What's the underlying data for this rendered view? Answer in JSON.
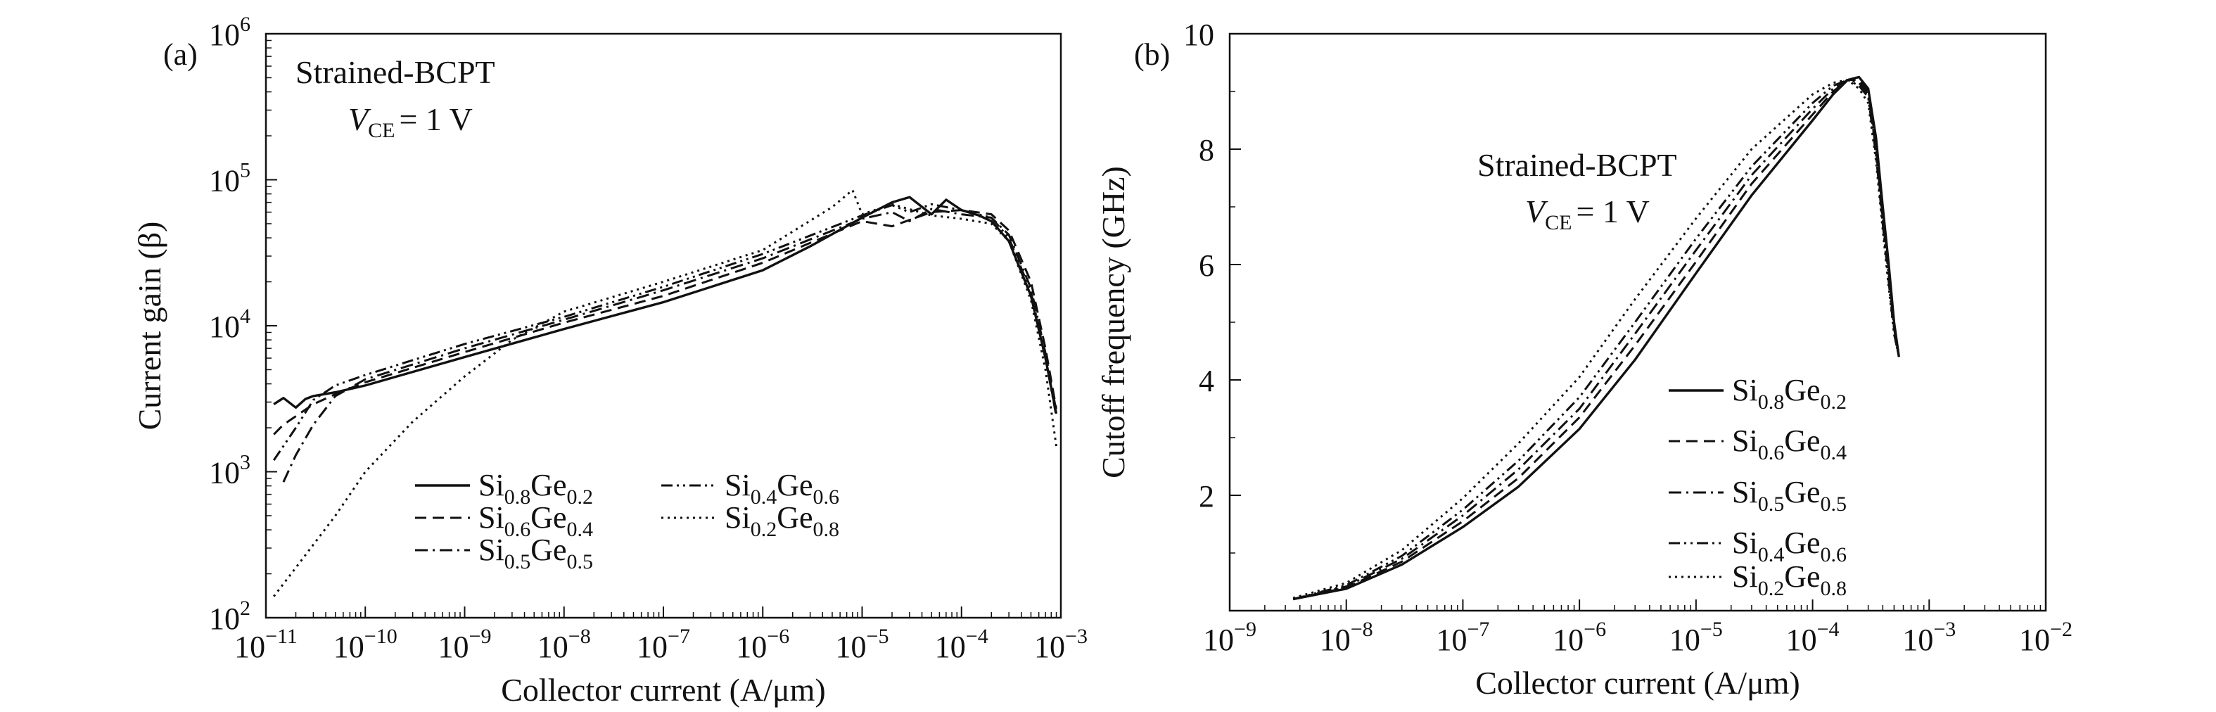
{
  "chart_data": [
    {
      "panel": "(a)",
      "type": "line",
      "annotation": {
        "line1": "Strained-BCPT",
        "vce_symbol": "V",
        "vce_sub": "CE",
        "vce_value": "= 1 V"
      },
      "xlabel": "Collector current (A/μm)",
      "ylabel": "Current gain (β)",
      "xscale": "log",
      "yscale": "log",
      "xlim": [
        1e-11,
        0.001
      ],
      "ylim": [
        100,
        1000000
      ],
      "xticks": [
        {
          "base": "10",
          "exp": "−11"
        },
        {
          "base": "10",
          "exp": "−10"
        },
        {
          "base": "10",
          "exp": "−9"
        },
        {
          "base": "10",
          "exp": "−8"
        },
        {
          "base": "10",
          "exp": "−7"
        },
        {
          "base": "10",
          "exp": "−6"
        },
        {
          "base": "10",
          "exp": "−5"
        },
        {
          "base": "10",
          "exp": "−4"
        },
        {
          "base": "10",
          "exp": "−3"
        }
      ],
      "yticks": [
        {
          "base": "10",
          "exp": "2"
        },
        {
          "base": "10",
          "exp": "3"
        },
        {
          "base": "10",
          "exp": "4"
        },
        {
          "base": "10",
          "exp": "5"
        },
        {
          "base": "10",
          "exp": "6"
        }
      ],
      "legend": "lower-left, two columns",
      "series": [
        {
          "name": {
            "a": "Si",
            "as": "0.8",
            "b": "Ge",
            "bs": "0.2"
          },
          "dash": "solid",
          "x": [
            1.2e-11,
            1.5e-11,
            2e-11,
            2.5e-11,
            3e-11,
            5e-11,
            1e-10,
            1e-09,
            1e-08,
            1e-07,
            1e-06,
            3e-06,
            1e-05,
            2e-05,
            3e-05,
            5e-05,
            7e-05,
            0.0001,
            0.00015,
            0.0002,
            0.0003,
            0.0005,
            0.0007,
            0.0009
          ],
          "y": [
            2900,
            3200,
            2750,
            3150,
            3300,
            3500,
            3900,
            6100,
            9500,
            14500,
            24000,
            35000,
            55000,
            70000,
            76000,
            58000,
            73000,
            62000,
            57000,
            52000,
            38000,
            16000,
            6000,
            2500
          ]
        },
        {
          "name": {
            "a": "Si",
            "as": "0.6",
            "b": "Ge",
            "bs": "0.4"
          },
          "dash": "dashed",
          "x": [
            1.2e-11,
            1.5e-11,
            2e-11,
            3e-11,
            5e-11,
            1e-10,
            1e-09,
            1e-08,
            1e-07,
            1e-06,
            1e-05,
            2e-05,
            3e-05,
            5e-05,
            0.0001,
            0.0002,
            0.0003,
            0.0005,
            0.0007,
            0.0009
          ],
          "y": [
            1800,
            2100,
            2400,
            2900,
            3400,
            4100,
            6600,
            10500,
            16000,
            27000,
            52000,
            48000,
            53000,
            60000,
            62000,
            58000,
            45000,
            20000,
            7000,
            2700
          ]
        },
        {
          "name": {
            "a": "Si",
            "as": "0.5",
            "b": "Ge",
            "bs": "0.5"
          },
          "dash": "dashdot",
          "x": [
            1.5e-11,
            2e-11,
            3e-11,
            5e-11,
            1e-10,
            1e-09,
            1e-08,
            1e-07,
            1e-06,
            1e-05,
            2e-05,
            3e-05,
            5e-05,
            0.0001,
            0.0002,
            0.0003,
            0.0005,
            0.0007,
            0.0009
          ],
          "y": [
            850,
            1300,
            2100,
            3300,
            4300,
            7000,
            11000,
            17500,
            29000,
            54000,
            60000,
            52000,
            63000,
            58000,
            55000,
            42000,
            18000,
            6500,
            2600
          ]
        },
        {
          "name": {
            "a": "Si",
            "as": "0.4",
            "b": "Ge",
            "bs": "0.6"
          },
          "dash": "dashdotdot",
          "x": [
            1.2e-11,
            1.5e-11,
            2e-11,
            3e-11,
            5e-11,
            1e-10,
            1e-09,
            1e-08,
            1e-07,
            1e-06,
            1e-05,
            2e-05,
            3e-05,
            5e-05,
            0.0001,
            0.0002,
            0.0003,
            0.0005,
            0.0007,
            0.0009
          ],
          "y": [
            1200,
            1500,
            2000,
            3100,
            3900,
            4600,
            7500,
            11500,
            18500,
            31000,
            57000,
            67000,
            60000,
            68000,
            62000,
            55000,
            40000,
            17000,
            6000,
            2400
          ]
        },
        {
          "name": {
            "a": "Si",
            "as": "0.2",
            "b": "Ge",
            "bs": "0.8"
          },
          "dash": "dotted",
          "x": [
            1.2e-11,
            2e-11,
            5e-11,
            1e-10,
            3e-10,
            1e-09,
            3e-09,
            1e-08,
            1e-07,
            1e-06,
            5e-06,
            8e-06,
            1e-05,
            2e-05,
            5e-05,
            0.0001,
            0.0002,
            0.0003,
            0.0005,
            0.0007,
            0.0009
          ],
          "y": [
            140,
            220,
            500,
            1000,
            2200,
            4500,
            8000,
            12500,
            20000,
            33000,
            65000,
            85000,
            58000,
            68000,
            57000,
            54000,
            50000,
            38000,
            15000,
            5000,
            1500
          ]
        }
      ]
    },
    {
      "panel": "(b)",
      "type": "line",
      "annotation": {
        "line1": "Strained-BCPT",
        "vce_symbol": "V",
        "vce_sub": "CE",
        "vce_value": "= 1 V"
      },
      "xlabel": "Collector current (A/μm)",
      "ylabel": "Cutoff frequency (GHz)",
      "xscale": "log",
      "yscale": "linear",
      "xlim": [
        1e-09,
        0.01
      ],
      "ylim": [
        0,
        10
      ],
      "xticks": [
        {
          "base": "10",
          "exp": "−9"
        },
        {
          "base": "10",
          "exp": "−8"
        },
        {
          "base": "10",
          "exp": "−7"
        },
        {
          "base": "10",
          "exp": "−6"
        },
        {
          "base": "10",
          "exp": "−5"
        },
        {
          "base": "10",
          "exp": "−4"
        },
        {
          "base": "10",
          "exp": "−3"
        },
        {
          "base": "10",
          "exp": "−2"
        }
      ],
      "yticks": [
        {
          "value": 2,
          "label": "2"
        },
        {
          "value": 4,
          "label": "4"
        },
        {
          "value": 6,
          "label": "6"
        },
        {
          "value": 8,
          "label": "8"
        },
        {
          "value": 10,
          "label": "10"
        }
      ],
      "legend": "right, one column",
      "series": [
        {
          "name": {
            "a": "Si",
            "as": "0.8",
            "b": "Ge",
            "bs": "0.2"
          },
          "dash": "solid",
          "x": [
            3.5e-09,
            1e-08,
            3e-08,
            1e-07,
            3e-07,
            1e-06,
            3e-06,
            1e-05,
            3e-05,
            0.0001,
            0.00015,
            0.0002,
            0.00025,
            0.0003,
            0.00035,
            0.0004,
            0.00045,
            0.0005,
            0.00055
          ],
          "y": [
            0.2,
            0.38,
            0.8,
            1.45,
            2.15,
            3.15,
            4.35,
            5.85,
            7.2,
            8.5,
            8.95,
            9.2,
            9.25,
            9.05,
            8.2,
            7.0,
            6.0,
            5.0,
            4.4
          ]
        },
        {
          "name": {
            "a": "Si",
            "as": "0.6",
            "b": "Ge",
            "bs": "0.4"
          },
          "dash": "dashed",
          "x": [
            3.5e-09,
            1e-08,
            3e-08,
            1e-07,
            3e-07,
            1e-06,
            3e-06,
            1e-05,
            3e-05,
            0.0001,
            0.00015,
            0.0002,
            0.00025,
            0.0003,
            0.00035,
            0.0004,
            0.00045,
            0.0005,
            0.00055
          ],
          "y": [
            0.2,
            0.4,
            0.85,
            1.55,
            2.3,
            3.35,
            4.6,
            6.05,
            7.4,
            8.6,
            9.0,
            9.2,
            9.2,
            9.0,
            8.1,
            6.9,
            5.9,
            4.9,
            4.4
          ]
        },
        {
          "name": {
            "a": "Si",
            "as": "0.5",
            "b": "Ge",
            "bs": "0.5"
          },
          "dash": "dashdot",
          "x": [
            3.5e-09,
            1e-08,
            3e-08,
            1e-07,
            3e-07,
            1e-06,
            3e-06,
            1e-05,
            3e-05,
            0.0001,
            0.00015,
            0.0002,
            0.00025,
            0.0003,
            0.00035,
            0.0004,
            0.00045,
            0.0005,
            0.00055
          ],
          "y": [
            0.2,
            0.42,
            0.9,
            1.65,
            2.45,
            3.5,
            4.8,
            6.25,
            7.55,
            8.7,
            9.05,
            9.2,
            9.15,
            8.95,
            8.0,
            6.8,
            5.8,
            4.9,
            4.4
          ]
        },
        {
          "name": {
            "a": "Si",
            "as": "0.4",
            "b": "Ge",
            "bs": "0.6"
          },
          "dash": "dashdotdot",
          "x": [
            3.5e-09,
            1e-08,
            3e-08,
            1e-07,
            3e-07,
            1e-06,
            3e-06,
            1e-05,
            3e-05,
            0.0001,
            0.00015,
            0.0002,
            0.00025,
            0.0003,
            0.00035,
            0.0004,
            0.00045,
            0.0005,
            0.00055
          ],
          "y": [
            0.2,
            0.44,
            0.95,
            1.75,
            2.6,
            3.7,
            5.0,
            6.45,
            7.7,
            8.8,
            9.1,
            9.2,
            9.1,
            8.9,
            7.9,
            6.7,
            5.7,
            4.8,
            4.4
          ]
        },
        {
          "name": {
            "a": "Si",
            "as": "0.2",
            "b": "Ge",
            "bs": "0.8"
          },
          "dash": "dotted",
          "x": [
            3.5e-09,
            1e-08,
            3e-08,
            1e-07,
            3e-07,
            1e-06,
            3e-06,
            1e-05,
            3e-05,
            0.0001,
            0.00015,
            0.0002,
            0.00025,
            0.0003,
            0.00035,
            0.0004,
            0.00045,
            0.0005,
            0.00055
          ],
          "y": [
            0.22,
            0.48,
            1.05,
            1.95,
            2.9,
            4.05,
            5.4,
            6.8,
            8.0,
            8.95,
            9.15,
            9.2,
            9.05,
            8.8,
            7.8,
            6.6,
            5.6,
            4.8,
            4.4
          ]
        }
      ]
    }
  ]
}
